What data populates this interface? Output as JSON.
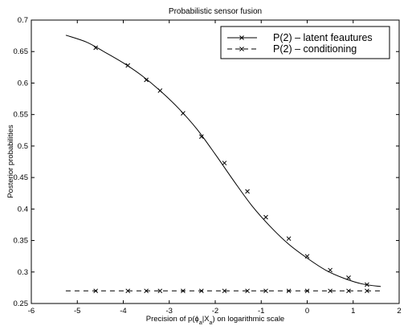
{
  "chart_data": {
    "type": "line",
    "title": "Probabilistic sensor fusion",
    "xlabel": {
      "before": "Precision of p(",
      "phi": "ϕ",
      "phi_sub": "a",
      "bar": "|X",
      "x_sub": "a",
      "after": ") on logarithmic scale"
    },
    "ylabel": "Posterior probabilities",
    "xlim": [
      -6,
      2
    ],
    "ylim": [
      0.25,
      0.7
    ],
    "xticks": [
      -6,
      -5,
      -4,
      -3,
      -2,
      -1,
      0,
      1,
      2
    ],
    "yticks": [
      0.25,
      0.3,
      0.35,
      0.4,
      0.45,
      0.5,
      0.55,
      0.6,
      0.65,
      0.7
    ],
    "grid": false,
    "legend_position": "top-right",
    "series": [
      {
        "name": "P(2) – latent feautures",
        "style": "solid",
        "marker": "x",
        "color": "#000000",
        "x": [
          -5.25,
          -4.8,
          -4.4,
          -4.0,
          -3.6,
          -3.2,
          -2.8,
          -2.4,
          -2.0,
          -1.6,
          -1.2,
          -0.8,
          -0.4,
          0.0,
          0.4,
          0.8,
          1.2,
          1.6
        ],
        "y": [
          0.676,
          0.665,
          0.649,
          0.632,
          0.612,
          0.588,
          0.56,
          0.527,
          0.487,
          0.445,
          0.405,
          0.372,
          0.344,
          0.322,
          0.303,
          0.29,
          0.281,
          0.277
        ],
        "marker_x": [
          -4.6,
          -3.9,
          -3.5,
          -3.2,
          -2.7,
          -2.3,
          -1.8,
          -1.3,
          -0.9,
          -0.4,
          0.0,
          0.5,
          0.9,
          1.3
        ],
        "marker_y": [
          0.656,
          0.628,
          0.605,
          0.588,
          0.552,
          0.515,
          0.473,
          0.428,
          0.387,
          0.353,
          0.325,
          0.303,
          0.291,
          0.28
        ]
      },
      {
        "name": "P(2) – conditioning",
        "style": "dashed",
        "marker": "x",
        "color": "#000000",
        "x": [
          -5.25,
          1.6
        ],
        "y": [
          0.27,
          0.27
        ],
        "marker_x": [
          -4.6,
          -3.9,
          -3.5,
          -3.2,
          -2.7,
          -2.3,
          -1.8,
          -1.3,
          -0.9,
          -0.4,
          0.0,
          0.5,
          0.9,
          1.3
        ],
        "marker_y": [
          0.27,
          0.27,
          0.27,
          0.27,
          0.27,
          0.27,
          0.27,
          0.27,
          0.27,
          0.27,
          0.27,
          0.27,
          0.27,
          0.27
        ]
      }
    ]
  }
}
